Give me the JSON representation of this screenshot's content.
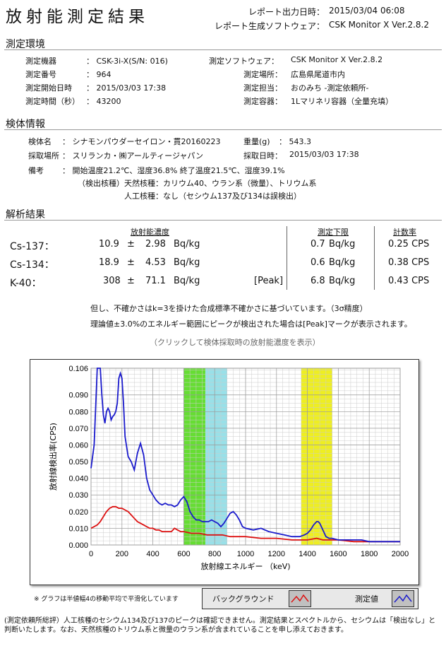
{
  "title": "放射能測定結果",
  "header": {
    "report_time_label": "レポート出力日時：",
    "report_time": "2015/03/04 06:08",
    "software_label": "レポート生成ソフトウェア：",
    "software": "CSK Monitor X Ver.2.8.2"
  },
  "env": {
    "heading": "測定環境",
    "rows": [
      {
        "l1": "測定機器",
        "v1": "：  CSK-3i-X(S/N: 016)",
        "l2": "測定ソフトウェア：",
        "v2": "CSK Monitor X Ver.2.8.2"
      },
      {
        "l1": "測定番号",
        "v1": "：  964",
        "l2": "測定場所：",
        "v2": "広島県尾道市内"
      },
      {
        "l1": "測定開始日時",
        "v1": "：  2015/03/03 17:38",
        "l2": "測定担当：",
        "v2": "おのみち -測定依頼所-"
      },
      {
        "l1": "測定時間（秒）",
        "v1": "：  43200",
        "l2": "測定容器：",
        "v2": "1Lマリネリ容器（全量充填）"
      }
    ]
  },
  "sample": {
    "heading": "検体情報",
    "name_label": "検体名",
    "name": "：  シナモンパウダーセイロン・貫20160223",
    "weight_label": "重量(g)",
    "weight": "：  543.3",
    "place_label": "採取場所",
    "place": "：  スリランカ・㈱アールティージャパン",
    "date_label": "採取日時：",
    "date": "2015/03/03 17:38",
    "remarks_label": "備考",
    "remarks1": "：  開始温度21.2℃、湿度36.8%   終了温度21.5℃、湿度39.1%",
    "remarks2": "（検出核種）天然核種：カリウム40、ウラン系（微量）、トリウム系",
    "remarks3": "人工核種：なし（セシウム137及び134は誤検出）"
  },
  "results": {
    "heading": "解析結果",
    "col_conc": "放射能濃度",
    "col_lod": "測定下限",
    "col_rate": "計数率",
    "rows": [
      {
        "nuclide": "Cs-137：",
        "value": "10.9",
        "pm": "±",
        "err": "2.98",
        "unit": "Bq/kg",
        "peak": "",
        "lod": "0.7",
        "lod_unit": "Bq/kg",
        "rate": "0.25 CPS"
      },
      {
        "nuclide": "Cs-134：",
        "value": "18.9",
        "pm": "±",
        "err": "4.53",
        "unit": "Bq/kg",
        "peak": "",
        "lod": "0.6",
        "lod_unit": "Bq/kg",
        "rate": "0.38 CPS"
      },
      {
        "nuclide": "K-40：",
        "value": "308",
        "pm": "±",
        "err": "71.1",
        "unit": "Bq/kg",
        "peak": "[Peak]",
        "lod": "6.8",
        "lod_unit": "Bq/kg",
        "rate": "0.43 CPS"
      }
    ],
    "note1": "但し、不確かさはk=3を掛けた合成標準不確かさに基づいています。（3σ精度）",
    "note2": "理論値±3.0%のエネルギー範囲にピークが検出された場合は[Peak]マークが表示されます。",
    "note3": "（クリックして検体採取時の放射能濃度を表示）"
  },
  "chart_note": "※ グラフは半値幅4の移動平均で平滑化しています",
  "legend": {
    "background": "バックグラウンド",
    "measured": "測定値"
  },
  "footer": "(測定依頼所総評）人工核種のセシウム134及び137のピークは確認できません。測定結果とスペクトルから、セシウムは「検出なし」と判断いたします。なお、天然核種のトリウム系と微量のウラン系が含まれていることを申し添えておきます。",
  "chart_data": {
    "type": "line",
    "xlabel": "放射線エネルギー （keV)",
    "ylabel": "放射線検出率(CPS)",
    "xlim": [
      0,
      2000
    ],
    "ylim": [
      0,
      0.106
    ],
    "xticks": [
      0,
      200,
      400,
      600,
      800,
      1000,
      1200,
      1400,
      1600,
      1800,
      2000
    ],
    "yticks": [
      0.0,
      0.01,
      0.02,
      0.03,
      0.04,
      0.05,
      0.06,
      0.07,
      0.08,
      0.09,
      0.106
    ],
    "ytick_labels": [
      "0.000",
      "0.010",
      "0.020",
      "0.030",
      "0.040",
      "0.050",
      "0.060",
      "0.070",
      "0.080",
      "0.090",
      "0.106"
    ],
    "grid": true,
    "bands": [
      {
        "x0": 600,
        "x1": 740,
        "color": "#66dd33"
      },
      {
        "x0": 740,
        "x1": 880,
        "color": "#99e0e8"
      },
      {
        "x0": 1360,
        "x1": 1560,
        "color": "#eeee22"
      }
    ],
    "series": [
      {
        "name": "測定値",
        "color": "#1a1acc",
        "x": [
          0,
          20,
          40,
          50,
          60,
          70,
          80,
          90,
          100,
          110,
          120,
          130,
          140,
          150,
          160,
          170,
          180,
          190,
          200,
          210,
          220,
          240,
          260,
          280,
          300,
          320,
          340,
          360,
          380,
          400,
          420,
          440,
          460,
          480,
          500,
          520,
          540,
          560,
          580,
          600,
          620,
          640,
          660,
          680,
          700,
          720,
          740,
          760,
          780,
          800,
          820,
          840,
          860,
          880,
          900,
          920,
          940,
          960,
          980,
          1000,
          1050,
          1100,
          1150,
          1200,
          1250,
          1300,
          1350,
          1380,
          1400,
          1420,
          1440,
          1460,
          1470,
          1480,
          1500,
          1520,
          1540,
          1560,
          1600,
          1650,
          1700,
          1750,
          1800,
          1850,
          1900,
          1950,
          2000
        ],
        "y": [
          0.046,
          0.06,
          0.106,
          0.106,
          0.106,
          0.09,
          0.078,
          0.073,
          0.08,
          0.082,
          0.08,
          0.075,
          0.077,
          0.078,
          0.08,
          0.085,
          0.1,
          0.103,
          0.1,
          0.085,
          0.065,
          0.053,
          0.05,
          0.045,
          0.055,
          0.061,
          0.054,
          0.04,
          0.033,
          0.03,
          0.027,
          0.025,
          0.024,
          0.025,
          0.024,
          0.024,
          0.023,
          0.024,
          0.027,
          0.029,
          0.026,
          0.02,
          0.017,
          0.015,
          0.015,
          0.014,
          0.014,
          0.014,
          0.015,
          0.014,
          0.013,
          0.011,
          0.013,
          0.016,
          0.019,
          0.02,
          0.018,
          0.015,
          0.011,
          0.01,
          0.009,
          0.01,
          0.008,
          0.007,
          0.006,
          0.005,
          0.005,
          0.006,
          0.007,
          0.009,
          0.012,
          0.014,
          0.014,
          0.013,
          0.009,
          0.005,
          0.004,
          0.004,
          0.003,
          0.003,
          0.003,
          0.003,
          0.002,
          0.002,
          0.002,
          0.002,
          0.002
        ]
      },
      {
        "name": "バックグラウンド",
        "color": "#dd1111",
        "x": [
          0,
          20,
          40,
          60,
          80,
          100,
          120,
          140,
          160,
          180,
          200,
          220,
          240,
          260,
          280,
          300,
          320,
          340,
          360,
          380,
          400,
          420,
          440,
          460,
          480,
          500,
          520,
          540,
          560,
          580,
          600,
          650,
          700,
          750,
          800,
          850,
          900,
          950,
          1000,
          1100,
          1200,
          1300,
          1400,
          1460,
          1500,
          1600,
          1700,
          1800,
          1900,
          2000
        ],
        "y": [
          0.01,
          0.011,
          0.012,
          0.014,
          0.017,
          0.02,
          0.022,
          0.023,
          0.023,
          0.022,
          0.022,
          0.021,
          0.02,
          0.018,
          0.016,
          0.014,
          0.013,
          0.012,
          0.011,
          0.01,
          0.01,
          0.009,
          0.009,
          0.008,
          0.008,
          0.008,
          0.008,
          0.01,
          0.009,
          0.008,
          0.008,
          0.007,
          0.007,
          0.006,
          0.006,
          0.006,
          0.005,
          0.005,
          0.005,
          0.004,
          0.004,
          0.003,
          0.003,
          0.004,
          0.003,
          0.003,
          0.002,
          0.002,
          0.002,
          0.002
        ]
      }
    ]
  }
}
